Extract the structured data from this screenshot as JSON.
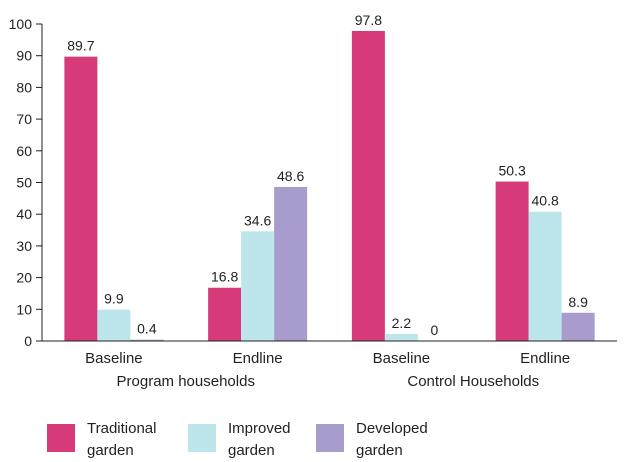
{
  "chart_data": {
    "type": "bar",
    "title": "",
    "xlabel": "",
    "ylabel": "",
    "ylim": [
      0,
      100
    ],
    "yticks": [
      0,
      10,
      20,
      30,
      40,
      50,
      60,
      70,
      80,
      90,
      100
    ],
    "groups": [
      {
        "label": "Program households",
        "categories": [
          "Baseline",
          "Endline"
        ]
      },
      {
        "label": "Control Households",
        "categories": [
          "Baseline",
          "Endline"
        ]
      }
    ],
    "categories": [
      "Baseline",
      "Endline",
      "Baseline",
      "Endline"
    ],
    "series": [
      {
        "name": "Traditional garden",
        "color": "#d63a78",
        "values": [
          89.7,
          16.8,
          97.8,
          50.3
        ],
        "labels": [
          "89.7",
          "16.8",
          "97.8",
          "50.3"
        ]
      },
      {
        "name": "Improved garden",
        "color": "#bde5ec",
        "values": [
          9.9,
          34.6,
          2.2,
          40.8
        ],
        "labels": [
          "9.9",
          "34.6",
          "2.2",
          "40.8"
        ]
      },
      {
        "name": "Developed garden",
        "color": "#a79ccb",
        "values": [
          0.4,
          48.6,
          0,
          8.9
        ],
        "labels": [
          "0.4",
          "48.6",
          "0",
          "8.9"
        ]
      }
    ],
    "grid": false,
    "legend_position": "bottom"
  }
}
